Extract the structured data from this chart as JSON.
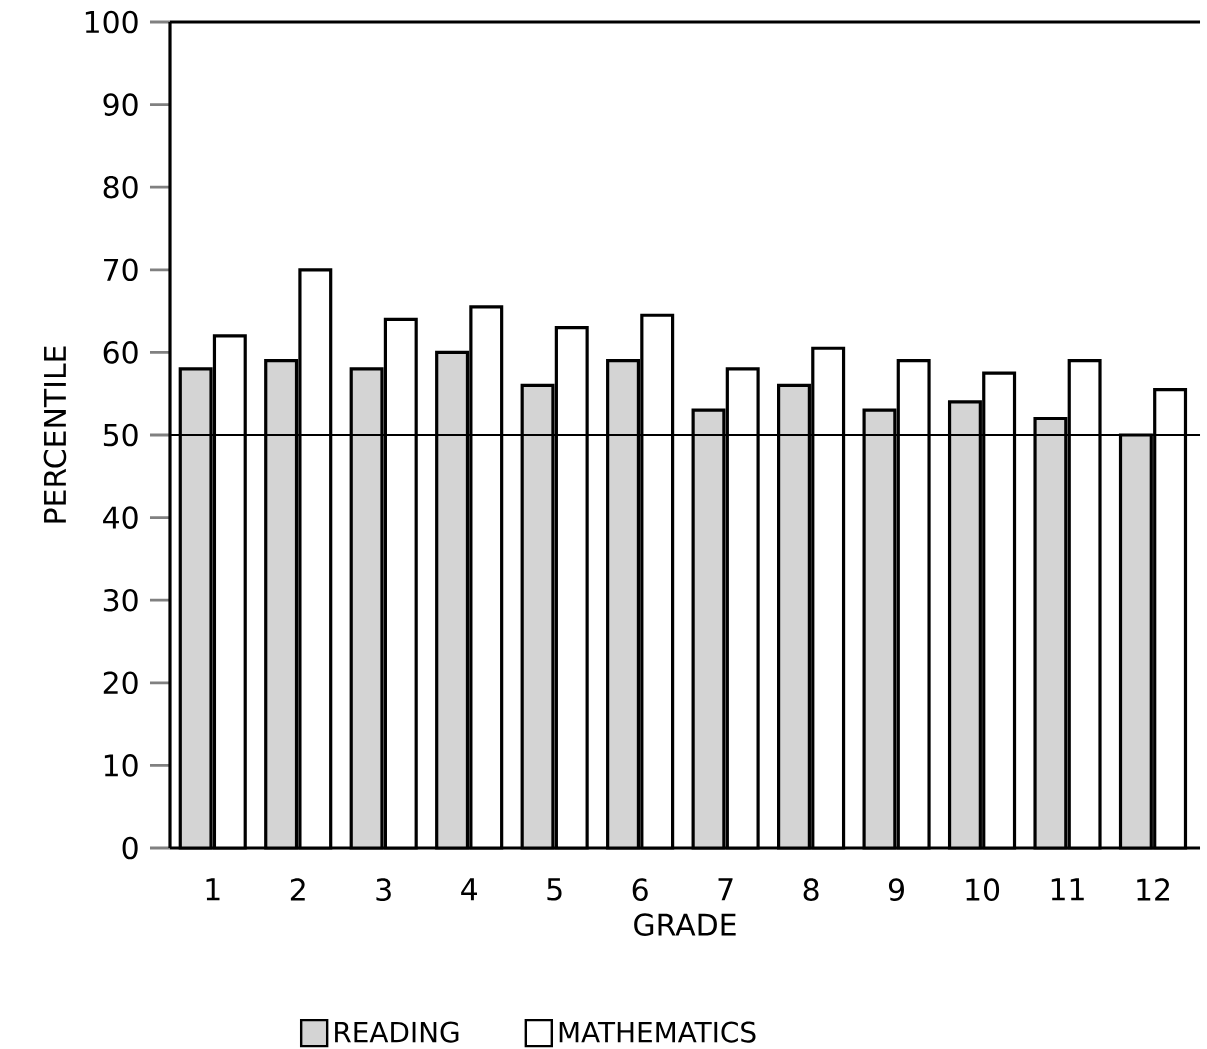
{
  "chart_data": {
    "type": "bar",
    "xlabel": "GRADE",
    "ylabel": "PERCENTILE",
    "categories": [
      "1",
      "2",
      "3",
      "4",
      "5",
      "6",
      "7",
      "8",
      "9",
      "10",
      "11",
      "12"
    ],
    "series": [
      {
        "name": "READING",
        "color": "#d4d4d4",
        "values": [
          58,
          59,
          58,
          60,
          56,
          59,
          53,
          56,
          53,
          54,
          52,
          50
        ]
      },
      {
        "name": "MATHEMATICS",
        "color": "#ffffff",
        "values": [
          62,
          70,
          64,
          65.5,
          63,
          64.5,
          58,
          60.5,
          59,
          57.5,
          59,
          55.5
        ]
      }
    ],
    "ylim": [
      0,
      100
    ],
    "yticks": [
      0,
      10,
      20,
      30,
      40,
      50,
      60,
      70,
      80,
      90,
      100
    ],
    "ref_lines": [
      {
        "axis": "y",
        "value": 50,
        "color": "#000000"
      }
    ],
    "grid": false,
    "legend": "bottom"
  }
}
